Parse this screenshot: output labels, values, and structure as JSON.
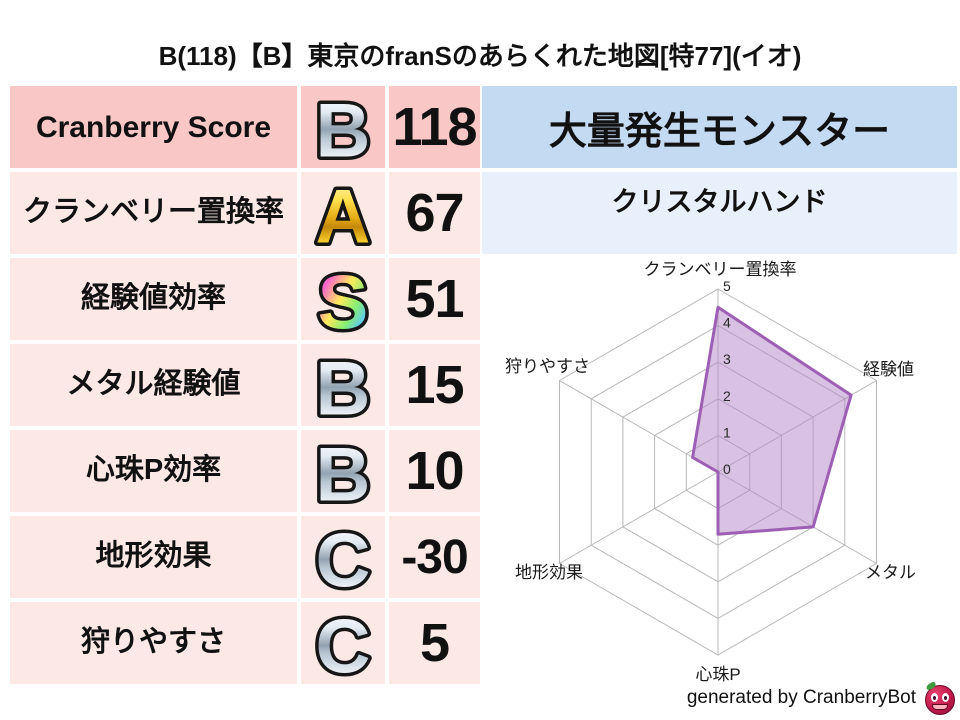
{
  "title": "B(118)【B】東京のfranSのあらくれた地図[特77](イオ)",
  "stats_table": {
    "rows": [
      {
        "label": "Cranberry Score",
        "rank": "B",
        "rank_style": "silver",
        "value": "118",
        "highlight": true
      },
      {
        "label": "クランベリー置換率",
        "rank": "A",
        "rank_style": "gold",
        "value": "67",
        "highlight": false
      },
      {
        "label": "経験値効率",
        "rank": "S",
        "rank_style": "rainbow",
        "value": "51",
        "highlight": false
      },
      {
        "label": "メタル経験値",
        "rank": "B",
        "rank_style": "silver",
        "value": "15",
        "highlight": false
      },
      {
        "label": "心珠P効率",
        "rank": "B",
        "rank_style": "silver",
        "value": "10",
        "highlight": false
      },
      {
        "label": "地形効果",
        "rank": "C",
        "rank_style": "silver",
        "value": "-30",
        "highlight": false
      },
      {
        "label": "狩りやすさ",
        "rank": "C",
        "rank_style": "silver",
        "value": "5",
        "highlight": false
      }
    ]
  },
  "monster_panel": {
    "header": "大量発生モンスター",
    "name": "クリスタルハンド"
  },
  "footer": {
    "credit": "generated by CranberryBot",
    "logo": "cranberry-face-icon"
  },
  "colors": {
    "row_highlight_bg": "#f9c7c6",
    "row_bg": "#fce8e5",
    "monster_header_bg": "#c4daf3",
    "monster_name_bg": "#e8f1fb",
    "badge_outline": "#161616",
    "badge_silver_mid": "#93a2b2",
    "badge_gold_mid": "#e3a812",
    "radar_grid": "#b8b8b8"
  },
  "chart_data": {
    "type": "radar",
    "title": "",
    "axes": [
      "クランベリー置換率",
      "経験値",
      "メタル",
      "心珠P",
      "地形効果",
      "狩りやすさ"
    ],
    "values": [
      4.5,
      4.2,
      3.0,
      1.7,
      0,
      0.8
    ],
    "ticks": [
      0,
      1,
      2,
      3,
      4,
      5
    ],
    "max": 5,
    "grid_color": "#b8b8b8",
    "fill_color": "#b284c8",
    "fill_opacity": 0.5,
    "line_color": "#9d5fb4",
    "tick_color": "#2a2a2a",
    "label_color": "#1a1a1a"
  }
}
